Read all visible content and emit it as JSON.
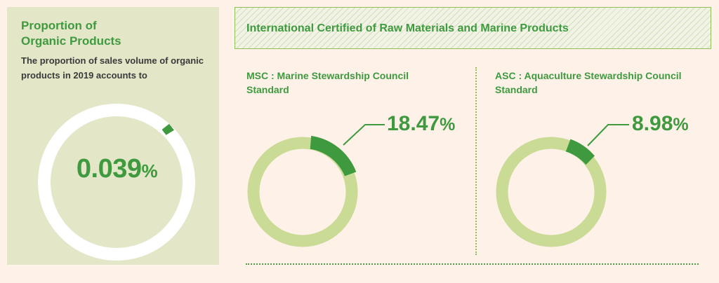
{
  "organic": {
    "title_line1": "Proportion of",
    "title_line2": "Organic Products",
    "description": "The proportion of sales volume of organic products in 2019 accounts to",
    "value_number": "0.039",
    "value_unit": "%",
    "proportion": 0.039
  },
  "banner": {
    "title": "International Certified of Raw Materials and Marine Products"
  },
  "msc": {
    "title_line1": "MSC : Marine Stewardship Council",
    "title_line2": "Standard",
    "value_number": "18.47",
    "value_unit": "%",
    "proportion": 18.47
  },
  "asc": {
    "title_line1": "ASC : Aquaculture Stewardship Council",
    "title_line2": "Standard",
    "value_number": "8.98",
    "value_unit": "%",
    "proportion": 8.98
  },
  "colors": {
    "accent": "#3f9a3f",
    "ring_light": "#cadb96",
    "panel_bg": "#e3e7c8",
    "page_bg": "#fdf1e8"
  }
}
